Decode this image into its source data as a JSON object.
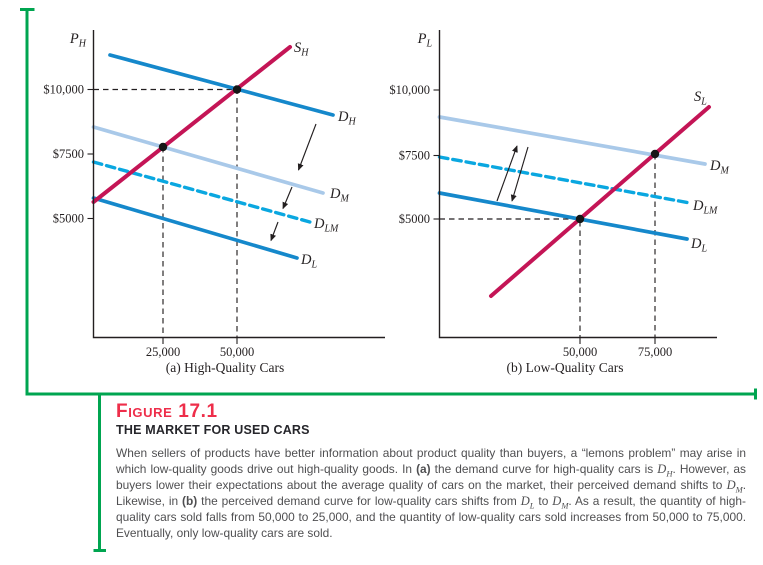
{
  "figure": {
    "label": "Figure",
    "number": "17.1",
    "title": "THE MARKET FOR USED CARS",
    "caption_segments": [
      {
        "text": "When sellers of products have better information about product quality than buyers, a “lemons problem” may arise in which low-quality goods drive out high-quality goods. In "
      },
      {
        "text": "(a)",
        "b": true
      },
      {
        "text": " the demand curve for high-quality cars is "
      },
      {
        "var": "D",
        "sub": "H"
      },
      {
        "text": ". However, as buyers lower their expectations about the average quality of cars on the market, their perceived demand shifts to "
      },
      {
        "var": "D",
        "sub": "M"
      },
      {
        "text": ". Likewise, in "
      },
      {
        "text": "(b)",
        "b": true
      },
      {
        "text": " the perceived demand curve for low-quality cars shifts from "
      },
      {
        "var": "D",
        "sub": "L"
      },
      {
        "text": " to "
      },
      {
        "var": "D",
        "sub": "M"
      },
      {
        "text": ". As a result, the quantity of high-quality cars sold falls from 50,000 to 25,000, and the quantity of low-quality cars sold increases from 50,000 to 75,000. Eventually, only low-quality cars are sold."
      }
    ]
  },
  "panel_a": {
    "caption": "(a) High-Quality Cars",
    "y_var": {
      "main": "P",
      "sub": "H"
    },
    "y_ticks": [
      "$10,000",
      "$7500",
      "$5000"
    ],
    "x_ticks": [
      "25,000",
      "50,000"
    ],
    "labels": {
      "s": {
        "main": "S",
        "sub": "H"
      },
      "dh": {
        "main": "D",
        "sub": "H"
      },
      "dm": {
        "main": "D",
        "sub": "M"
      },
      "dlm": {
        "main": "D",
        "sub": "LM"
      },
      "dl": {
        "main": "D",
        "sub": "L"
      }
    }
  },
  "panel_b": {
    "caption": "(b) Low-Quality Cars",
    "y_var": {
      "main": "P",
      "sub": "L"
    },
    "y_ticks": [
      "$10,000",
      "$7500",
      "$5000"
    ],
    "x_ticks": [
      "50,000",
      "75,000"
    ],
    "labels": {
      "s": {
        "main": "S",
        "sub": "L"
      },
      "dm": {
        "main": "D",
        "sub": "M"
      },
      "dlm": {
        "main": "D",
        "sub": "LM"
      },
      "dl": {
        "main": "D",
        "sub": "L"
      }
    }
  },
  "colors": {
    "bracket_green": "#00A550",
    "supply_crimson": "#C41556",
    "demand_blue": "#1588CB",
    "demand_light_blue": "#A9C9E9",
    "demand_cyan_dashed": "#0AA7E0",
    "figure_label_red": "#EE2E4A",
    "caption_gray": "#4f4f51"
  },
  "chart_data": [
    {
      "type": "line",
      "title": "(a) High-Quality Cars",
      "xlabel": "",
      "ylabel": "P_H",
      "x_ticks": [
        25000,
        50000
      ],
      "y_ticks": [
        5000,
        7500,
        10000
      ],
      "xlim": [
        0,
        90000
      ],
      "ylim": [
        2500,
        12000
      ],
      "grid": false,
      "series": [
        {
          "name": "S_H",
          "role": "supply",
          "style": "solid",
          "color": "#C41556",
          "points": [
            [
              0,
              6100
            ],
            [
              25000,
              7500
            ],
            [
              50000,
              10000
            ],
            [
              66000,
              11600
            ]
          ]
        },
        {
          "name": "D_H",
          "role": "demand",
          "style": "solid",
          "color": "#1588CB",
          "points": [
            [
              6000,
              11300
            ],
            [
              81000,
              9000
            ]
          ]
        },
        {
          "name": "D_M",
          "role": "demand",
          "style": "solid",
          "color": "#A9C9E9",
          "points": [
            [
              0,
              8500
            ],
            [
              78000,
              6000
            ]
          ]
        },
        {
          "name": "D_LM",
          "role": "demand",
          "style": "dashed",
          "color": "#0AA7E0",
          "points": [
            [
              0,
              7200
            ],
            [
              73000,
              4900
            ]
          ]
        },
        {
          "name": "D_L",
          "role": "demand",
          "style": "solid",
          "color": "#1588CB",
          "points": [
            [
              0,
              5800
            ],
            [
              69000,
              3500
            ]
          ]
        }
      ],
      "equilibria": [
        {
          "quantity": 50000,
          "price": 10000,
          "at": "S_H × D_H"
        },
        {
          "quantity": 25000,
          "price": 7500,
          "at": "S_H × D_M"
        }
      ],
      "annotations": [
        "arrows show demand shifting down: D_H → D_M → D_LM → D_L"
      ]
    },
    {
      "type": "line",
      "title": "(b) Low-Quality Cars",
      "xlabel": "",
      "ylabel": "P_L",
      "x_ticks": [
        50000,
        75000
      ],
      "y_ticks": [
        5000,
        7500,
        10000
      ],
      "xlim": [
        0,
        90000
      ],
      "ylim": [
        1500,
        12000
      ],
      "grid": false,
      "series": [
        {
          "name": "S_L",
          "role": "supply",
          "style": "solid",
          "color": "#C41556",
          "points": [
            [
              20000,
              2000
            ],
            [
              50000,
              5000
            ],
            [
              75000,
              7500
            ],
            [
              93000,
              9400
            ]
          ]
        },
        {
          "name": "D_M",
          "role": "demand",
          "style": "solid",
          "color": "#A9C9E9",
          "points": [
            [
              0,
              8900
            ],
            [
              92000,
              7100
            ]
          ]
        },
        {
          "name": "D_LM",
          "role": "demand",
          "style": "dashed",
          "color": "#0AA7E0",
          "points": [
            [
              0,
              7400
            ],
            [
              87000,
              5600
            ]
          ]
        },
        {
          "name": "D_L",
          "role": "demand",
          "style": "solid",
          "color": "#1588CB",
          "points": [
            [
              0,
              6000
            ],
            [
              86000,
              4200
            ]
          ]
        }
      ],
      "equilibria": [
        {
          "quantity": 50000,
          "price": 5000,
          "at": "S_L × D_L"
        },
        {
          "quantity": 75000,
          "price": 7500,
          "at": "S_L × D_M"
        }
      ],
      "annotations": [
        "double arrows show perceived demand shifting between D_L and D_M"
      ]
    }
  ]
}
